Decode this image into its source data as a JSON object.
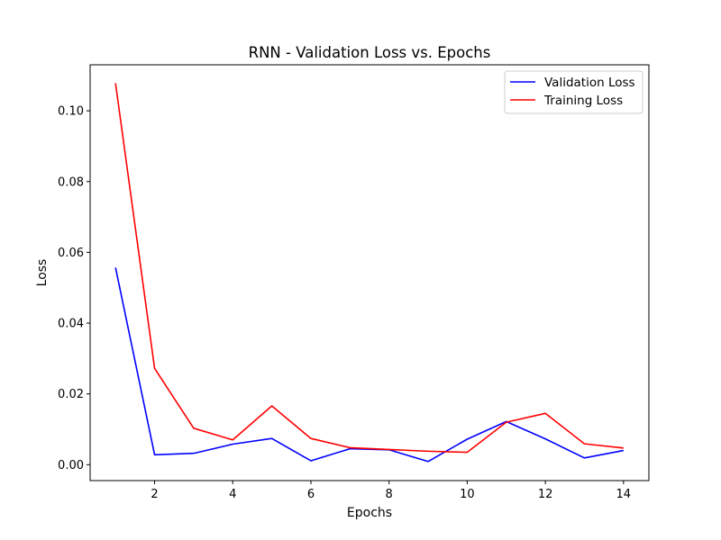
{
  "chart_data": {
    "type": "line",
    "title": "RNN - Validation Loss vs. Epochs",
    "xlabel": "Epochs",
    "ylabel": "Loss",
    "x": [
      1,
      2,
      3,
      4,
      5,
      6,
      7,
      8,
      9,
      10,
      11,
      12,
      13,
      14
    ],
    "xlim": [
      0.35,
      14.65
    ],
    "ylim": [
      -0.0045,
      0.113
    ],
    "xticks": [
      2,
      4,
      6,
      8,
      10,
      12,
      14
    ],
    "xtick_labels": [
      "2",
      "4",
      "6",
      "8",
      "10",
      "12",
      "14"
    ],
    "yticks": [
      0.0,
      0.02,
      0.04,
      0.06,
      0.08,
      0.1
    ],
    "ytick_labels": [
      "0.00",
      "0.02",
      "0.04",
      "0.06",
      "0.08",
      "0.10"
    ],
    "grid": false,
    "legend_position": "top-right",
    "series": [
      {
        "name": "Validation Loss",
        "color": "#0000ff",
        "values": [
          0.0557,
          0.0028,
          0.0032,
          0.0058,
          0.0074,
          0.0011,
          0.0045,
          0.0042,
          0.0009,
          0.0072,
          0.0122,
          0.0073,
          0.0019,
          0.004
        ]
      },
      {
        "name": "Training Loss",
        "color": "#ff0000",
        "values": [
          0.1078,
          0.0272,
          0.0103,
          0.007,
          0.0166,
          0.0074,
          0.0048,
          0.0043,
          0.0038,
          0.0035,
          0.012,
          0.0145,
          0.0059,
          0.0047
        ]
      }
    ]
  }
}
